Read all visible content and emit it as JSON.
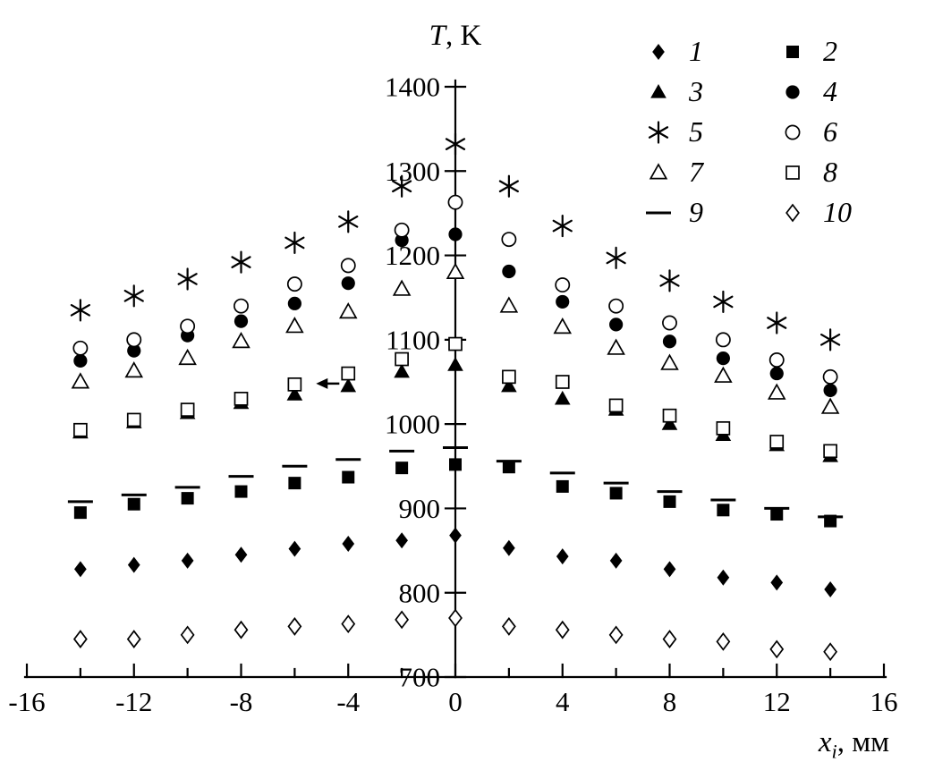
{
  "axes": {
    "y_title_var": "T",
    "y_title_rest": ", K",
    "x_title_var": "x",
    "x_title_sub": "i",
    "x_title_rest": ", мм"
  },
  "legend": [
    {
      "marker": "diamond-filled",
      "label": "1"
    },
    {
      "marker": "square-filled",
      "label": "2"
    },
    {
      "marker": "triangle-filled",
      "label": "3"
    },
    {
      "marker": "circle-filled",
      "label": "4"
    },
    {
      "marker": "asterisk",
      "label": "5"
    },
    {
      "marker": "circle-open",
      "label": "6"
    },
    {
      "marker": "triangle-open",
      "label": "7"
    },
    {
      "marker": "square-open",
      "label": "8"
    },
    {
      "marker": "dash",
      "label": "9"
    },
    {
      "marker": "diamond-open",
      "label": "10"
    }
  ],
  "chart_data": {
    "type": "scatter",
    "title": "",
    "xlabel": "x_i, мм",
    "ylabel": "T, K",
    "xlim": [
      -16,
      16
    ],
    "ylim": [
      700,
      1400
    ],
    "xticks": [
      -16,
      -12,
      -8,
      -4,
      0,
      4,
      8,
      12,
      16
    ],
    "xticks_minor_step": 2,
    "yticks": [
      700,
      800,
      900,
      1000,
      1100,
      1200,
      1300,
      1400
    ],
    "grid": false,
    "legend_position": "top-right",
    "x": [
      -14,
      -12,
      -10,
      -8,
      -6,
      -4,
      -2,
      0,
      2,
      4,
      6,
      8,
      10,
      12,
      14
    ],
    "series": [
      {
        "name": "1",
        "marker": "diamond-filled",
        "values": [
          828,
          833,
          838,
          845,
          852,
          858,
          862,
          868,
          853,
          843,
          838,
          828,
          818,
          812,
          804
        ]
      },
      {
        "name": "2",
        "marker": "square-filled",
        "values": [
          895,
          905,
          912,
          920,
          930,
          937,
          948,
          952,
          949,
          926,
          918,
          908,
          898,
          893,
          885
        ]
      },
      {
        "name": "3",
        "marker": "triangle-filled",
        "values": [
          990,
          1002,
          1013,
          1025,
          1035,
          1045,
          1062,
          1070,
          1045,
          1030,
          1017,
          1000,
          987,
          975,
          962
        ]
      },
      {
        "name": "4",
        "marker": "circle-filled",
        "values": [
          1075,
          1087,
          1105,
          1122,
          1143,
          1167,
          1218,
          1225,
          1181,
          1145,
          1118,
          1098,
          1078,
          1060,
          1040
        ]
      },
      {
        "name": "5",
        "marker": "asterisk",
        "values": [
          1135,
          1152,
          1172,
          1192,
          1215,
          1240,
          1282,
          1332,
          1282,
          1235,
          1197,
          1170,
          1145,
          1120,
          1100
        ]
      },
      {
        "name": "6",
        "marker": "circle-open",
        "values": [
          1090,
          1100,
          1116,
          1140,
          1166,
          1188,
          1230,
          1263,
          1219,
          1165,
          1140,
          1120,
          1100,
          1076,
          1056
        ]
      },
      {
        "name": "7",
        "marker": "triangle-open",
        "values": [
          1050,
          1063,
          1078,
          1098,
          1116,
          1133,
          1160,
          1180,
          1140,
          1115,
          1090,
          1072,
          1057,
          1037,
          1020
        ]
      },
      {
        "name": "8",
        "marker": "square-open",
        "values": [
          993,
          1005,
          1017,
          1030,
          1047,
          1060,
          1077,
          1095,
          1056,
          1050,
          1022,
          1010,
          995,
          979,
          968
        ]
      },
      {
        "name": "9",
        "marker": "dash",
        "values": [
          908,
          916,
          925,
          938,
          950,
          958,
          968,
          972,
          956,
          942,
          930,
          920,
          910,
          900,
          890
        ]
      },
      {
        "name": "10",
        "marker": "diamond-open",
        "values": [
          745,
          745,
          750,
          756,
          760,
          763,
          768,
          770,
          760,
          756,
          750,
          745,
          742,
          733,
          730
        ]
      }
    ],
    "annotations": [
      {
        "type": "arrow-left",
        "x": -5.2,
        "y": 1048
      }
    ]
  }
}
